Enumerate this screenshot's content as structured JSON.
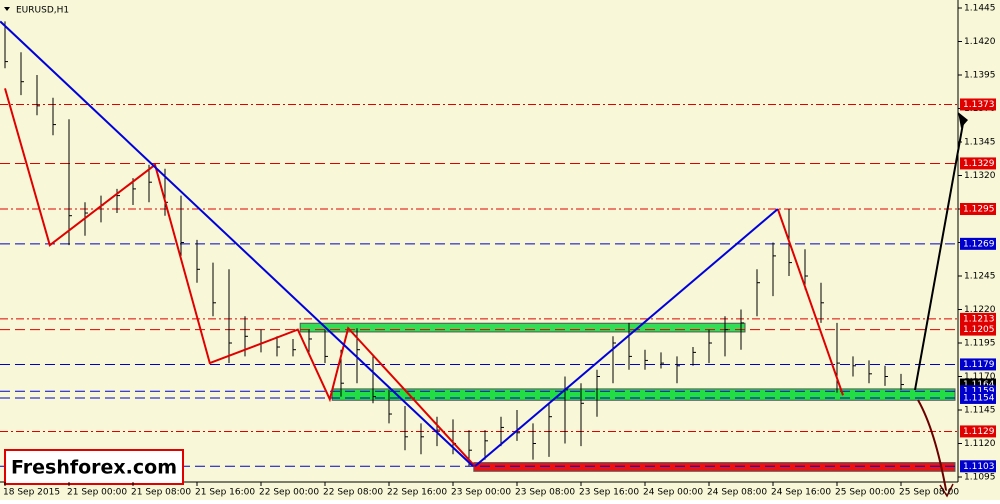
{
  "chart_data": {
    "type": "ohlc",
    "title": "EURUSD,H1",
    "logo": "Freshforex.com",
    "bar_color": "#000000",
    "background": "#f8f8d8",
    "xlim": [
      -0.625,
      119.125
    ],
    "xticks": [
      {
        "value": 0,
        "label": "18 Sep 2015"
      },
      {
        "value": 8,
        "label": "21 Sep 00:00"
      },
      {
        "value": 16,
        "label": "21 Sep 08:00"
      },
      {
        "value": 24,
        "label": "21 Sep 16:00"
      },
      {
        "value": 32,
        "label": "22 Sep 00:00"
      },
      {
        "value": 40,
        "label": "22 Sep 08:00"
      },
      {
        "value": 48,
        "label": "22 Sep 16:00"
      },
      {
        "value": 56,
        "label": "23 Sep 00:00"
      },
      {
        "value": 64,
        "label": "23 Sep 08:00"
      },
      {
        "value": 72,
        "label": "23 Sep 16:00"
      },
      {
        "value": 80,
        "label": "24 Sep 00:00"
      },
      {
        "value": 88,
        "label": "24 Sep 08:00"
      },
      {
        "value": 96,
        "label": "24 Sep 16:00"
      },
      {
        "value": 104,
        "label": "25 Sep 00:00"
      },
      {
        "value": 112,
        "label": "25 Sep 08:00"
      }
    ],
    "ylim": [
      1.1095,
      1.1445
    ],
    "yticks": [
      1.1445,
      {
        "value": 1.142,
        "label": "1.1420"
      },
      1.1395,
      {
        "value": 1.137,
        "label": "1.1370"
      },
      1.1345,
      {
        "value": 1.132,
        "label": "1.1320"
      },
      1.1295,
      {
        "value": 1.127,
        "label": "1.1270"
      },
      1.1245,
      {
        "value": 1.122,
        "label": "1.1220"
      },
      1.1195,
      {
        "value": 1.117,
        "label": "1.1170"
      },
      1.1145,
      {
        "value": 1.112,
        "label": "1.1120"
      },
      1.1095
    ],
    "x": [
      0,
      2,
      4,
      6,
      8,
      10,
      12,
      14,
      16,
      18,
      20,
      22,
      24,
      26,
      28,
      30,
      32,
      34,
      36,
      38,
      40,
      42,
      44,
      46,
      48,
      50,
      52,
      54,
      56,
      58,
      60,
      62,
      64,
      66,
      68,
      70,
      72,
      74,
      76,
      78,
      80,
      82,
      84,
      86,
      88,
      90,
      92,
      94,
      96,
      98,
      100,
      102,
      104,
      106,
      108,
      110,
      112
    ],
    "high": [
      1.1435,
      1.1412,
      1.1395,
      1.1378,
      1.1362,
      1.13,
      1.1305,
      1.131,
      1.1318,
      1.1328,
      1.1325,
      1.1305,
      1.1272,
      1.1255,
      1.125,
      1.1215,
      1.1205,
      1.12,
      1.1198,
      1.1205,
      1.1205,
      1.119,
      1.1206,
      1.1185,
      1.116,
      1.1148,
      1.1135,
      1.114,
      1.1138,
      1.113,
      1.113,
      1.114,
      1.1145,
      1.1135,
      1.115,
      1.117,
      1.1165,
      1.1175,
      1.12,
      1.121,
      1.119,
      1.1188,
      1.1185,
      1.1192,
      1.1205,
      1.1215,
      1.122,
      1.125,
      1.127,
      1.1295,
      1.1265,
      1.124,
      1.121,
      1.1185,
      1.1182,
      1.1178,
      1.1172
    ],
    "low": [
      1.14,
      1.138,
      1.1365,
      1.135,
      1.1268,
      1.1275,
      1.1285,
      1.1292,
      1.1298,
      1.13,
      1.129,
      1.126,
      1.124,
      1.1215,
      1.118,
      1.1185,
      1.1188,
      1.1185,
      1.1185,
      1.1188,
      1.118,
      1.1155,
      1.1165,
      1.115,
      1.1135,
      1.1115,
      1.1112,
      1.1118,
      1.1112,
      1.1103,
      1.1108,
      1.1118,
      1.1122,
      1.1108,
      1.111,
      1.112,
      1.1118,
      1.114,
      1.1165,
      1.1175,
      1.1175,
      1.1176,
      1.1165,
      1.1178,
      1.118,
      1.1185,
      1.119,
      1.1215,
      1.123,
      1.1245,
      1.1235,
      1.121,
      1.1158,
      1.117,
      1.1165,
      1.1163,
      1.116
    ],
    "close": [
      1.1405,
      1.139,
      1.1372,
      1.1358,
      1.129,
      1.1292,
      1.1298,
      1.1305,
      1.131,
      1.1315,
      1.13,
      1.127,
      1.125,
      1.1225,
      1.1195,
      1.12,
      1.1195,
      1.1192,
      1.119,
      1.1198,
      1.1185,
      1.1165,
      1.119,
      1.1155,
      1.1142,
      1.1125,
      1.1125,
      1.113,
      1.112,
      1.1115,
      1.1122,
      1.1132,
      1.1128,
      1.112,
      1.114,
      1.116,
      1.115,
      1.117,
      1.1195,
      1.1185,
      1.1182,
      1.118,
      1.1178,
      1.1188,
      1.1195,
      1.1205,
      1.121,
      1.124,
      1.126,
      1.1255,
      1.1245,
      1.1225,
      1.118,
      1.1178,
      1.1172,
      1.117,
      1.1164
    ],
    "levels": [
      {
        "value": 1.1373,
        "color": "#e00000",
        "style": "dashdot"
      },
      {
        "value": 1.1329,
        "color": "#e00000",
        "style": "dashed"
      },
      {
        "value": 1.1295,
        "color": "#e00000",
        "style": "dashdot"
      },
      {
        "value": 1.1269,
        "color": "#0000cc",
        "style": "dashed"
      },
      {
        "value": 1.1213,
        "color": "#e00000",
        "style": "dashdot"
      },
      {
        "value": 1.1205,
        "color": "#e00000",
        "style": "dashed"
      },
      {
        "value": 1.1179,
        "color": "#0000cc",
        "style": "dashed"
      },
      {
        "value": 1.1164,
        "color": "#000000",
        "style": "none"
      },
      {
        "value": 1.1159,
        "color": "#0000cc",
        "style": "dashed"
      },
      {
        "value": 1.1154,
        "color": "#0000cc",
        "style": "dashed"
      },
      {
        "value": 1.1129,
        "color": "#e00000",
        "style": "dashdot"
      },
      {
        "value": 1.1103,
        "color": "#0000cc",
        "style": "dashed"
      }
    ],
    "zones": [
      {
        "x": [
          36.9,
          92.5
        ],
        "values": [
          1.1204,
          1.1209
        ],
        "color": "#33dd55"
      },
      {
        "x": [
          40.9,
          118.75
        ],
        "values": [
          1.1153,
          1.116
        ],
        "color": "#22dd44"
      },
      {
        "x": [
          58.6,
          118.75
        ],
        "values": [
          1.11,
          1.1105
        ],
        "color": "#ee1111"
      }
    ],
    "lines": [
      {
        "color": "#e00000",
        "x": [
          0,
          5.6,
          18.75,
          25.6,
          36.6,
          40.6,
          42.9,
          58.75,
          null,
          96.6,
          104.75
        ],
        "values": [
          1.1385,
          1.1268,
          1.1328,
          1.118,
          1.1205,
          1.1153,
          1.1206,
          1.1103,
          null,
          1.1295,
          1.1156
        ]
      },
      {
        "color": "#0000dd",
        "x": [
          -0.6,
          58.5,
          null,
          58.75,
          96.6
        ],
        "values": [
          1.1435,
          1.1103,
          null,
          1.1103,
          1.1295
        ]
      }
    ]
  }
}
